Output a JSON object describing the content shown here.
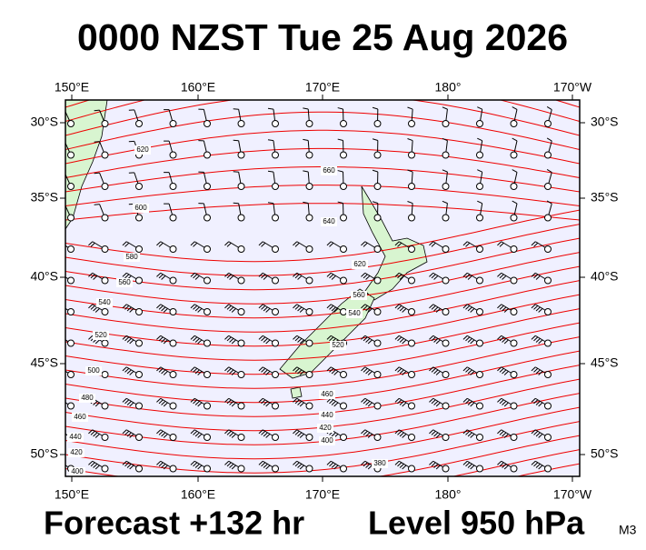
{
  "title": "0000 NZST Tue 25 Aug 2026",
  "map": {
    "lon_labels": [
      "150°E",
      "160°E",
      "170°E",
      "180°",
      "170°W"
    ],
    "lat_labels": [
      "30°S",
      "35°S",
      "40°S",
      "45°S",
      "50°S"
    ],
    "contour_labels": [
      "660",
      "640",
      "620",
      "620",
      "600",
      "580",
      "560",
      "540",
      "520",
      "500",
      "480",
      "460",
      "440",
      "420",
      "400",
      "400",
      "420",
      "440",
      "460",
      "380",
      "560",
      "540",
      "520"
    ]
  },
  "footer": {
    "forecast": "Forecast +132 hr",
    "level": "Level 950 hPa",
    "model": "M3"
  }
}
